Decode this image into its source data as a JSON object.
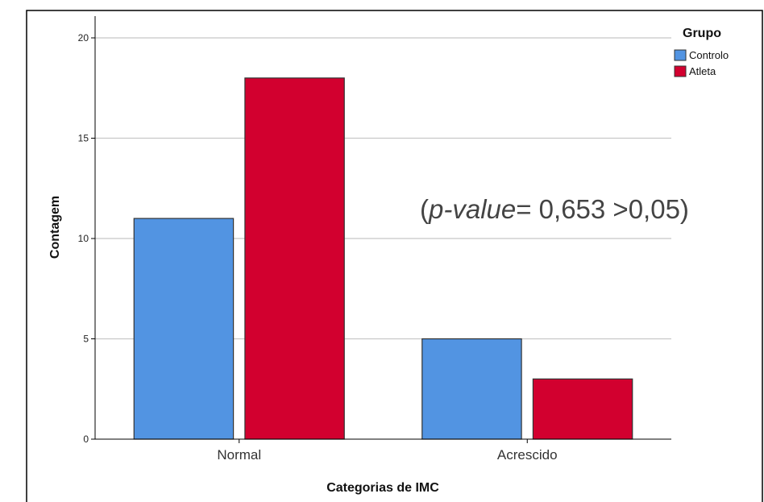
{
  "chart_data": {
    "type": "bar",
    "categories": [
      "Normal",
      "Acrescido"
    ],
    "series": [
      {
        "name": "Controlo",
        "values": [
          11,
          5
        ],
        "color": "#5294E2"
      },
      {
        "name": "Atleta",
        "values": [
          18,
          3
        ],
        "color": "#D2002F"
      }
    ],
    "title": "",
    "xlabel": "Categorias de IMC",
    "ylabel": "Contagem",
    "ylim": [
      0,
      20
    ],
    "yticks": [
      0,
      5,
      10,
      15,
      20
    ],
    "grid": true,
    "legend": {
      "title": "Grupo",
      "placement": "top-right"
    },
    "annotation": {
      "open": "(",
      "italic": "p-value",
      "rest": "= 0,653 >0,05)"
    }
  }
}
